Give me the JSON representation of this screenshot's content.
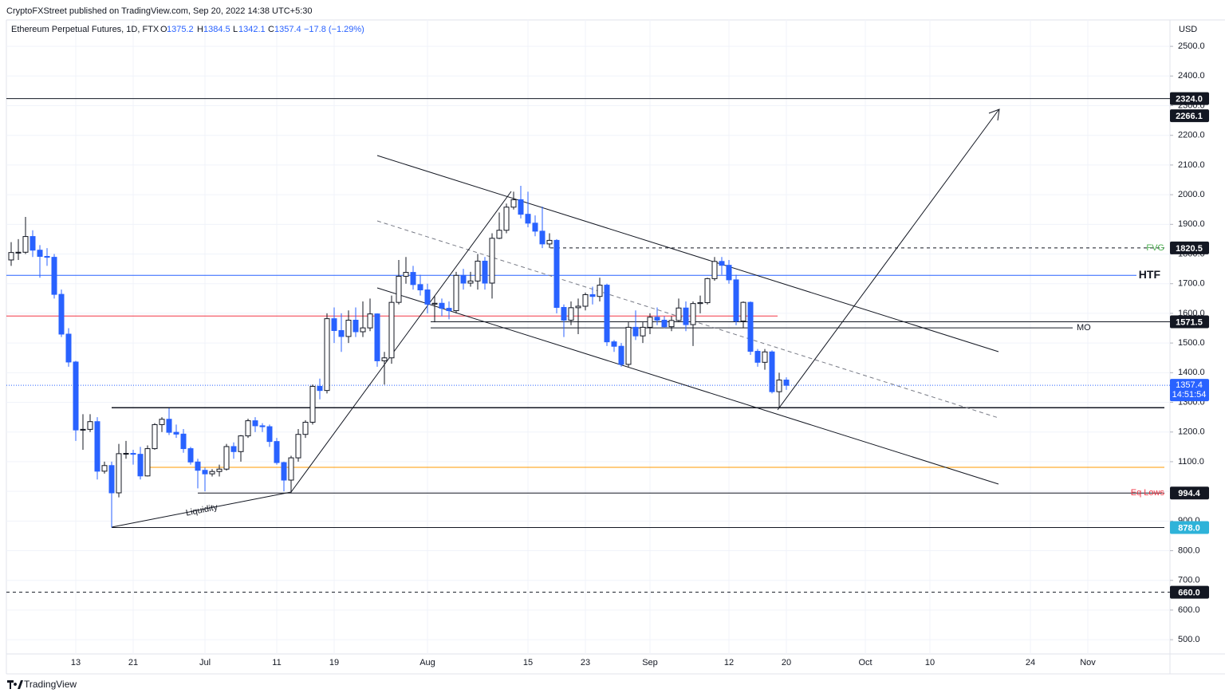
{
  "header": {
    "published": "CryptoFXStreet published on TradingView.com, Sep 20, 2022 14:38 UTC+5:30",
    "symbol": "Ethereum Perpetual Futures, 1D, FTX",
    "o": "O",
    "h": "H",
    "l": "L",
    "c": "C",
    "change": "−17.8 (−1.29%)",
    "brand": "TradingView"
  },
  "chart_data": {
    "type": "candlestick",
    "currency": "USD",
    "up_color": "#ffffff",
    "up_border": "#131722",
    "down_color": "#2962ff",
    "categories": [
      null,
      null,
      null,
      null,
      null,
      null,
      null,
      null,
      null,
      "13",
      null,
      null,
      null,
      null,
      null,
      null,
      null,
      "21",
      null,
      null,
      null,
      null,
      null,
      null,
      null,
      null,
      null,
      "Jul",
      null,
      null,
      null,
      null,
      null,
      null,
      null,
      null,
      null,
      "11",
      null,
      null,
      null,
      null,
      null,
      null,
      null,
      "19",
      null,
      null,
      null,
      null,
      null,
      null,
      null,
      null,
      null,
      null,
      null,
      null,
      "Aug",
      null,
      null,
      null,
      null,
      null,
      null,
      null,
      null,
      null,
      null,
      null,
      null,
      null,
      "15",
      null,
      null,
      null,
      null,
      null,
      null,
      null,
      "23",
      null,
      null,
      null,
      null,
      null,
      null,
      null,
      null,
      "Sep",
      null,
      null,
      null,
      null,
      null,
      null,
      null,
      null,
      null,
      null,
      "12",
      null,
      null,
      null,
      null,
      null,
      null,
      null,
      "20",
      null,
      null,
      null,
      null,
      null,
      null,
      null,
      null,
      null,
      null,
      "Oct",
      null,
      null,
      null,
      null,
      null,
      null,
      null,
      null,
      "10",
      null,
      null,
      null,
      null,
      null,
      null,
      null,
      null,
      null,
      null,
      null,
      null,
      null,
      "24",
      null,
      null,
      null,
      null,
      null,
      null,
      null,
      "Nov",
      null,
      null,
      null,
      null,
      null,
      null,
      null,
      null,
      null,
      null
    ],
    "open": [
      1780,
      1805,
      1806,
      1859,
      1813,
      1792,
      1789,
      1664,
      1530,
      1436,
      1207,
      1209,
      1235,
      1068,
      1087,
      995,
      1127,
      1128,
      1125,
      1052,
      1144,
      1225,
      1243,
      1199,
      1193,
      1144,
      1099,
      1071,
      1059,
      1067,
      1075,
      1151,
      1134,
      1187,
      1238,
      1221,
      1218,
      1168,
      1097,
      1038,
      1113,
      1192,
      1233,
      1354,
      1340,
      1582,
      1542,
      1522,
      1577,
      1538,
      1551,
      1598,
      1440,
      1450,
      1637,
      1725,
      1738,
      1697,
      1679,
      1631,
      1634,
      1617,
      1609,
      1728,
      1702,
      1709,
      1776,
      1702,
      1853,
      1880,
      1958,
      1983,
      1934,
      1904,
      1877,
      1834,
      1846,
      1620,
      1577,
      1619,
      1624,
      1663,
      1657,
      1695,
      1504,
      1489,
      1428,
      1553,
      1524,
      1553,
      1587,
      1577,
      1555,
      1576,
      1618,
      1562,
      1633,
      1636,
      1717,
      1775,
      1762,
      1713,
      1574,
      1637,
      1472,
      1435,
      1470,
      1336,
      1375.2,
      null,
      null,
      null,
      null,
      null,
      null,
      null,
      null,
      null,
      null,
      null,
      null,
      null,
      null,
      null,
      null,
      null,
      null,
      null,
      null,
      null,
      null,
      null,
      null,
      null,
      null,
      null,
      null,
      null,
      null,
      null,
      null,
      null,
      null,
      null,
      null,
      null,
      null,
      null,
      null,
      null,
      null,
      null,
      null,
      null,
      null,
      null,
      null,
      null,
      null,
      null,
      null
    ],
    "high": [
      1840,
      1850,
      1925,
      1880,
      1830,
      1820,
      1800,
      1680,
      1550,
      1440,
      1260,
      1260,
      1250,
      1100,
      1100,
      1160,
      1170,
      1140,
      1150,
      1155,
      1230,
      1250,
      1280,
      1225,
      1210,
      1150,
      1110,
      1080,
      1075,
      1090,
      1160,
      1165,
      1190,
      1245,
      1250,
      1230,
      1225,
      1180,
      1100,
      1120,
      1210,
      1240,
      1360,
      1380,
      1600,
      1620,
      1600,
      1610,
      1620,
      1640,
      1650,
      1600,
      1470,
      1660,
      1780,
      1790,
      1760,
      1730,
      1700,
      1660,
      1650,
      1640,
      1740,
      1750,
      1740,
      1800,
      1790,
      1870,
      1940,
      1970,
      2010,
      2030,
      2010,
      1930,
      1960,
      1870,
      1850,
      1630,
      1640,
      1650,
      1670,
      1690,
      1720,
      1700,
      1510,
      1500,
      1570,
      1610,
      1570,
      1600,
      1620,
      1590,
      1590,
      1650,
      1640,
      1640,
      1660,
      1720,
      1790,
      1790,
      1780,
      1730,
      1640,
      1640,
      1480,
      1480,
      1475,
      1400,
      1384.5,
      null,
      null,
      null,
      null,
      null,
      null,
      null,
      null,
      null,
      null,
      null,
      null,
      null,
      null,
      null,
      null,
      null,
      null,
      null,
      null,
      null,
      null,
      null,
      null,
      null,
      null,
      null,
      null,
      null,
      null,
      null,
      null,
      null,
      null,
      null,
      null,
      null,
      null,
      null,
      null,
      null,
      null,
      null,
      null,
      null,
      null,
      null,
      null,
      null,
      null,
      null,
      null
    ],
    "low": [
      1760,
      1780,
      1800,
      1790,
      1720,
      1760,
      1650,
      1520,
      1420,
      1170,
      1140,
      1200,
      1040,
      1060,
      878,
      980,
      1110,
      1090,
      1040,
      1050,
      1140,
      1200,
      1190,
      1180,
      1130,
      1090,
      1010,
      1000,
      1050,
      1050,
      1070,
      1110,
      1100,
      1180,
      1200,
      1200,
      1150,
      1090,
      1000,
      995,
      1100,
      1180,
      1225,
      1310,
      1330,
      1500,
      1470,
      1500,
      1520,
      1520,
      1540,
      1420,
      1360,
      1430,
      1630,
      1700,
      1680,
      1660,
      1600,
      1570,
      1590,
      1580,
      1600,
      1680,
      1690,
      1680,
      1680,
      1650,
      1850,
      1870,
      1950,
      1920,
      1890,
      1860,
      1820,
      1820,
      1600,
      1520,
      1560,
      1530,
      1610,
      1630,
      1640,
      1490,
      1470,
      1420,
      1420,
      1510,
      1500,
      1530,
      1560,
      1550,
      1540,
      1570,
      1540,
      1490,
      1600,
      1630,
      1710,
      1730,
      1700,
      1560,
      1550,
      1460,
      1420,
      1410,
      1330,
      1280,
      1342.1,
      null,
      null,
      null,
      null,
      null,
      null,
      null,
      null,
      null,
      null,
      null,
      null,
      null,
      null,
      null,
      null,
      null,
      null,
      null,
      null,
      null,
      null,
      null,
      null,
      null,
      null,
      null,
      null,
      null,
      null,
      null,
      null,
      null,
      null,
      null,
      null,
      null,
      null,
      null,
      null,
      null,
      null,
      null,
      null,
      null,
      null,
      null,
      null,
      null,
      null,
      null,
      null
    ],
    "close": [
      1805,
      1806,
      1859,
      1813,
      1792,
      1789,
      1664,
      1530,
      1436,
      1207,
      1209,
      1235,
      1068,
      1087,
      995,
      1127,
      1128,
      1125,
      1052,
      1144,
      1225,
      1243,
      1199,
      1193,
      1144,
      1099,
      1071,
      1059,
      1067,
      1075,
      1151,
      1134,
      1187,
      1238,
      1221,
      1218,
      1168,
      1097,
      1038,
      1113,
      1192,
      1233,
      1354,
      1340,
      1582,
      1542,
      1522,
      1577,
      1538,
      1551,
      1598,
      1440,
      1450,
      1637,
      1725,
      1738,
      1697,
      1679,
      1631,
      1634,
      1617,
      1609,
      1728,
      1702,
      1709,
      1776,
      1702,
      1853,
      1880,
      1958,
      1983,
      1934,
      1904,
      1877,
      1834,
      1846,
      1620,
      1577,
      1619,
      1624,
      1663,
      1657,
      1695,
      1504,
      1489,
      1428,
      1553,
      1524,
      1553,
      1587,
      1577,
      1555,
      1576,
      1618,
      1562,
      1633,
      1636,
      1717,
      1775,
      1762,
      1713,
      1574,
      1637,
      1472,
      1435,
      1470,
      1336,
      1375.2,
      1357.4,
      null,
      null,
      null,
      null,
      null,
      null,
      null,
      null,
      null,
      null,
      null,
      null,
      null,
      null,
      null,
      null,
      null,
      null,
      null,
      null,
      null,
      null,
      null,
      null,
      null,
      null,
      null,
      null,
      null,
      null,
      null,
      null,
      null,
      null,
      null,
      null,
      null,
      null,
      null,
      null,
      null,
      null,
      null,
      null,
      null,
      null,
      null,
      null,
      null,
      null,
      null,
      null
    ],
    "countdown": "14:51:54",
    "ylim": [
      452,
      2589
    ],
    "yticks": [
      {
        "value": 500,
        "label": "500.0"
      },
      {
        "value": 600,
        "label": "600.0"
      },
      {
        "value": 700,
        "label": "700.0"
      },
      {
        "value": 800,
        "label": "800.0"
      },
      {
        "value": 900,
        "label": "900.0"
      },
      {
        "value": 1000,
        "label": "1000.0"
      },
      {
        "value": 1100,
        "label": "1100.0"
      },
      {
        "value": 1200,
        "label": "1200.0"
      },
      {
        "value": 1300,
        "label": "1300.0"
      },
      {
        "value": 1400,
        "label": "1400.0"
      },
      {
        "value": 1500,
        "label": "1500.0"
      },
      {
        "value": 1600,
        "label": "1600.0"
      },
      {
        "value": 1700,
        "label": "1700.0"
      },
      {
        "value": 1800,
        "label": "1800.0"
      },
      {
        "value": 1900,
        "label": "1900.0"
      },
      {
        "value": 2000,
        "label": "2000.0"
      },
      {
        "value": 2100,
        "label": "2100.0"
      },
      {
        "value": 2200,
        "label": "2200.0"
      },
      {
        "value": 2300,
        "label": "2300.0"
      },
      {
        "value": 2400,
        "label": "2400.0"
      },
      {
        "value": 2500,
        "label": "2500.0"
      }
    ],
    "grid": true,
    "annotations": {
      "liquidity": "Liquidity"
    },
    "levels": [
      {
        "value": 2324,
        "label": "2324.0",
        "color": "#131722"
      },
      {
        "value": 2266.1,
        "label": "2266.1",
        "color": "#131722",
        "line": false
      },
      {
        "value": 1820.5,
        "label": "1820.5",
        "color": "#131722",
        "dashed": true,
        "note": "FVG",
        "note_color": "#4caf50"
      },
      {
        "value": 1728,
        "color": "#2962ff",
        "note": "HTF",
        "note_color": "#131722"
      },
      {
        "value": 1591,
        "color": "#f23645"
      },
      {
        "value": 1571.5,
        "label": "1571.5",
        "color": "#131722"
      },
      {
        "value": 1551,
        "color": "#131722",
        "note": "MO",
        "note_color": "#131722"
      },
      {
        "value": 1282,
        "color": "#131722"
      },
      {
        "value": 1081,
        "color": "#ff9800"
      },
      {
        "value": 994.4,
        "label": "994.4",
        "color": "#131722",
        "note": "Eq Lows",
        "note_color": "#f23645"
      },
      {
        "value": 878,
        "label": "878.0",
        "color": "#131722",
        "box": "#2eb3d9"
      },
      {
        "value": 660,
        "label": "660.0",
        "color": "#131722",
        "dashed": true
      }
    ]
  }
}
